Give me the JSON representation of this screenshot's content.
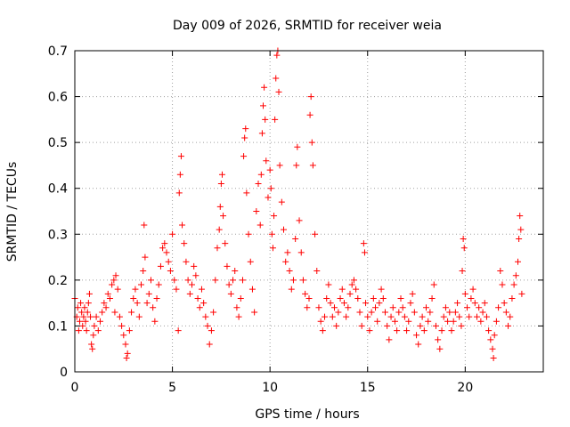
{
  "chart_data": {
    "type": "scatter",
    "title": "Day 009 of 2026, SRMTID for receiver weia",
    "xlabel": "GPS time / hours",
    "ylabel": "SRMTID / TECUs",
    "xlim": [
      0,
      24
    ],
    "ylim": [
      0,
      0.7
    ],
    "xticks": [
      0,
      5,
      10,
      15,
      20
    ],
    "yticks": [
      0,
      0.1,
      0.2,
      0.3,
      0.4,
      0.5,
      0.6,
      0.7
    ],
    "grid": true,
    "marker": "+",
    "point_color": "#ff0000",
    "grid_color": "#a0a0a0",
    "series": [
      {
        "name": "SRMTID",
        "points": [
          [
            0.0,
            0.16
          ],
          [
            0.1,
            0.12
          ],
          [
            0.15,
            0.14
          ],
          [
            0.2,
            0.09
          ],
          [
            0.25,
            0.11
          ],
          [
            0.3,
            0.15
          ],
          [
            0.35,
            0.13
          ],
          [
            0.4,
            0.1
          ],
          [
            0.45,
            0.12
          ],
          [
            0.5,
            0.14
          ],
          [
            0.55,
            0.11
          ],
          [
            0.6,
            0.09
          ],
          [
            0.65,
            0.13
          ],
          [
            0.7,
            0.15
          ],
          [
            0.75,
            0.17
          ],
          [
            0.8,
            0.12
          ],
          [
            0.85,
            0.06
          ],
          [
            0.9,
            0.05
          ],
          [
            0.95,
            0.08
          ],
          [
            1.0,
            0.1
          ],
          [
            1.1,
            0.12
          ],
          [
            1.2,
            0.09
          ],
          [
            1.3,
            0.11
          ],
          [
            1.4,
            0.13
          ],
          [
            1.5,
            0.15
          ],
          [
            1.6,
            0.14
          ],
          [
            1.7,
            0.17
          ],
          [
            1.8,
            0.16
          ],
          [
            1.9,
            0.19
          ],
          [
            2.0,
            0.2
          ],
          [
            2.05,
            0.13
          ],
          [
            2.1,
            0.21
          ],
          [
            2.2,
            0.18
          ],
          [
            2.3,
            0.12
          ],
          [
            2.4,
            0.1
          ],
          [
            2.5,
            0.08
          ],
          [
            2.6,
            0.06
          ],
          [
            2.65,
            0.03
          ],
          [
            2.7,
            0.04
          ],
          [
            2.8,
            0.09
          ],
          [
            2.9,
            0.13
          ],
          [
            3.0,
            0.16
          ],
          [
            3.1,
            0.18
          ],
          [
            3.2,
            0.15
          ],
          [
            3.3,
            0.12
          ],
          [
            3.4,
            0.19
          ],
          [
            3.5,
            0.22
          ],
          [
            3.55,
            0.32
          ],
          [
            3.6,
            0.25
          ],
          [
            3.7,
            0.15
          ],
          [
            3.8,
            0.17
          ],
          [
            3.9,
            0.2
          ],
          [
            4.0,
            0.14
          ],
          [
            4.1,
            0.11
          ],
          [
            4.2,
            0.16
          ],
          [
            4.3,
            0.19
          ],
          [
            4.4,
            0.23
          ],
          [
            4.5,
            0.27
          ],
          [
            4.6,
            0.28
          ],
          [
            4.7,
            0.26
          ],
          [
            4.8,
            0.24
          ],
          [
            4.9,
            0.22
          ],
          [
            5.0,
            0.3
          ],
          [
            5.1,
            0.2
          ],
          [
            5.2,
            0.18
          ],
          [
            5.3,
            0.09
          ],
          [
            5.35,
            0.39
          ],
          [
            5.4,
            0.43
          ],
          [
            5.45,
            0.47
          ],
          [
            5.5,
            0.32
          ],
          [
            5.6,
            0.28
          ],
          [
            5.7,
            0.24
          ],
          [
            5.8,
            0.2
          ],
          [
            5.9,
            0.17
          ],
          [
            6.0,
            0.19
          ],
          [
            6.1,
            0.23
          ],
          [
            6.2,
            0.21
          ],
          [
            6.3,
            0.16
          ],
          [
            6.4,
            0.14
          ],
          [
            6.5,
            0.18
          ],
          [
            6.6,
            0.15
          ],
          [
            6.7,
            0.12
          ],
          [
            6.8,
            0.1
          ],
          [
            6.9,
            0.06
          ],
          [
            7.0,
            0.09
          ],
          [
            7.1,
            0.13
          ],
          [
            7.2,
            0.2
          ],
          [
            7.3,
            0.27
          ],
          [
            7.4,
            0.31
          ],
          [
            7.45,
            0.36
          ],
          [
            7.5,
            0.41
          ],
          [
            7.55,
            0.43
          ],
          [
            7.6,
            0.34
          ],
          [
            7.7,
            0.28
          ],
          [
            7.8,
            0.23
          ],
          [
            7.9,
            0.19
          ],
          [
            8.0,
            0.17
          ],
          [
            8.1,
            0.2
          ],
          [
            8.2,
            0.22
          ],
          [
            8.3,
            0.14
          ],
          [
            8.4,
            0.12
          ],
          [
            8.5,
            0.16
          ],
          [
            8.6,
            0.2
          ],
          [
            8.65,
            0.47
          ],
          [
            8.7,
            0.51
          ],
          [
            8.75,
            0.53
          ],
          [
            8.8,
            0.39
          ],
          [
            8.9,
            0.3
          ],
          [
            9.0,
            0.24
          ],
          [
            9.1,
            0.18
          ],
          [
            9.2,
            0.13
          ],
          [
            9.3,
            0.35
          ],
          [
            9.4,
            0.41
          ],
          [
            9.5,
            0.32
          ],
          [
            9.55,
            0.43
          ],
          [
            9.6,
            0.52
          ],
          [
            9.65,
            0.58
          ],
          [
            9.7,
            0.62
          ],
          [
            9.75,
            0.55
          ],
          [
            9.8,
            0.46
          ],
          [
            9.9,
            0.38
          ],
          [
            10.0,
            0.44
          ],
          [
            10.05,
            0.4
          ],
          [
            10.1,
            0.3
          ],
          [
            10.15,
            0.27
          ],
          [
            10.2,
            0.34
          ],
          [
            10.25,
            0.55
          ],
          [
            10.3,
            0.64
          ],
          [
            10.35,
            0.69
          ],
          [
            10.4,
            0.7
          ],
          [
            10.45,
            0.61
          ],
          [
            10.5,
            0.45
          ],
          [
            10.6,
            0.37
          ],
          [
            10.7,
            0.31
          ],
          [
            10.8,
            0.24
          ],
          [
            10.9,
            0.26
          ],
          [
            11.0,
            0.22
          ],
          [
            11.1,
            0.18
          ],
          [
            11.2,
            0.2
          ],
          [
            11.3,
            0.29
          ],
          [
            11.35,
            0.45
          ],
          [
            11.4,
            0.49
          ],
          [
            11.5,
            0.33
          ],
          [
            11.6,
            0.26
          ],
          [
            11.7,
            0.2
          ],
          [
            11.8,
            0.17
          ],
          [
            11.9,
            0.14
          ],
          [
            12.0,
            0.16
          ],
          [
            12.05,
            0.56
          ],
          [
            12.1,
            0.6
          ],
          [
            12.15,
            0.5
          ],
          [
            12.2,
            0.45
          ],
          [
            12.3,
            0.3
          ],
          [
            12.4,
            0.22
          ],
          [
            12.5,
            0.14
          ],
          [
            12.6,
            0.11
          ],
          [
            12.7,
            0.09
          ],
          [
            12.8,
            0.12
          ],
          [
            12.9,
            0.16
          ],
          [
            13.0,
            0.19
          ],
          [
            13.1,
            0.15
          ],
          [
            13.2,
            0.12
          ],
          [
            13.3,
            0.14
          ],
          [
            13.4,
            0.1
          ],
          [
            13.5,
            0.13
          ],
          [
            13.6,
            0.16
          ],
          [
            13.7,
            0.18
          ],
          [
            13.8,
            0.15
          ],
          [
            13.9,
            0.12
          ],
          [
            14.0,
            0.14
          ],
          [
            14.1,
            0.17
          ],
          [
            14.2,
            0.19
          ],
          [
            14.3,
            0.2
          ],
          [
            14.4,
            0.18
          ],
          [
            14.5,
            0.16
          ],
          [
            14.6,
            0.13
          ],
          [
            14.7,
            0.1
          ],
          [
            14.8,
            0.28
          ],
          [
            14.85,
            0.26
          ],
          [
            14.9,
            0.15
          ],
          [
            15.0,
            0.12
          ],
          [
            15.1,
            0.09
          ],
          [
            15.2,
            0.13
          ],
          [
            15.3,
            0.16
          ],
          [
            15.4,
            0.14
          ],
          [
            15.5,
            0.11
          ],
          [
            15.6,
            0.15
          ],
          [
            15.7,
            0.18
          ],
          [
            15.8,
            0.16
          ],
          [
            15.9,
            0.13
          ],
          [
            16.0,
            0.1
          ],
          [
            16.1,
            0.07
          ],
          [
            16.2,
            0.12
          ],
          [
            16.3,
            0.14
          ],
          [
            16.4,
            0.11
          ],
          [
            16.5,
            0.09
          ],
          [
            16.6,
            0.13
          ],
          [
            16.7,
            0.16
          ],
          [
            16.8,
            0.14
          ],
          [
            16.9,
            0.12
          ],
          [
            17.0,
            0.09
          ],
          [
            17.1,
            0.11
          ],
          [
            17.2,
            0.15
          ],
          [
            17.3,
            0.17
          ],
          [
            17.4,
            0.13
          ],
          [
            17.5,
            0.08
          ],
          [
            17.6,
            0.06
          ],
          [
            17.7,
            0.1
          ],
          [
            17.8,
            0.12
          ],
          [
            17.9,
            0.09
          ],
          [
            18.0,
            0.14
          ],
          [
            18.1,
            0.11
          ],
          [
            18.2,
            0.13
          ],
          [
            18.3,
            0.16
          ],
          [
            18.4,
            0.19
          ],
          [
            18.5,
            0.1
          ],
          [
            18.6,
            0.07
          ],
          [
            18.7,
            0.05
          ],
          [
            18.8,
            0.09
          ],
          [
            18.9,
            0.12
          ],
          [
            19.0,
            0.14
          ],
          [
            19.1,
            0.11
          ],
          [
            19.2,
            0.13
          ],
          [
            19.3,
            0.09
          ],
          [
            19.4,
            0.11
          ],
          [
            19.5,
            0.13
          ],
          [
            19.6,
            0.15
          ],
          [
            19.7,
            0.12
          ],
          [
            19.8,
            0.1
          ],
          [
            19.85,
            0.22
          ],
          [
            19.9,
            0.29
          ],
          [
            19.95,
            0.27
          ],
          [
            20.0,
            0.17
          ],
          [
            20.1,
            0.14
          ],
          [
            20.2,
            0.12
          ],
          [
            20.3,
            0.16
          ],
          [
            20.4,
            0.18
          ],
          [
            20.5,
            0.15
          ],
          [
            20.6,
            0.12
          ],
          [
            20.7,
            0.14
          ],
          [
            20.8,
            0.11
          ],
          [
            20.9,
            0.13
          ],
          [
            21.0,
            0.15
          ],
          [
            21.1,
            0.12
          ],
          [
            21.2,
            0.09
          ],
          [
            21.3,
            0.07
          ],
          [
            21.4,
            0.05
          ],
          [
            21.45,
            0.03
          ],
          [
            21.5,
            0.08
          ],
          [
            21.6,
            0.11
          ],
          [
            21.7,
            0.14
          ],
          [
            21.8,
            0.22
          ],
          [
            21.9,
            0.19
          ],
          [
            22.0,
            0.15
          ],
          [
            22.1,
            0.13
          ],
          [
            22.2,
            0.1
          ],
          [
            22.3,
            0.12
          ],
          [
            22.4,
            0.16
          ],
          [
            22.5,
            0.19
          ],
          [
            22.6,
            0.21
          ],
          [
            22.7,
            0.24
          ],
          [
            22.75,
            0.29
          ],
          [
            22.8,
            0.34
          ],
          [
            22.85,
            0.31
          ],
          [
            22.9,
            0.17
          ]
        ]
      }
    ]
  }
}
